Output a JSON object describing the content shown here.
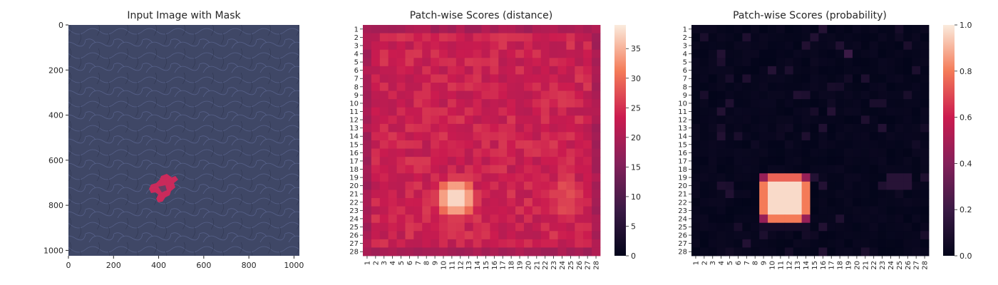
{
  "chart_data": [
    {
      "type": "image",
      "title": "Input Image with Mask",
      "xlim": [
        0,
        1024
      ],
      "ylim": [
        1024,
        0
      ],
      "x_ticks": [
        0,
        200,
        400,
        600,
        800,
        1000
      ],
      "y_ticks": [
        0,
        200,
        400,
        600,
        800,
        1000
      ],
      "image_description": "dark blue leather texture with a small red mask region",
      "mask_region": {
        "x_range": [
          360,
          480
        ],
        "y_range": [
          650,
          780
        ]
      },
      "colors": {
        "background": "#3f4766",
        "mask": "#d6285a"
      }
    },
    {
      "type": "heatmap",
      "title": "Patch-wise Scores (distance)",
      "rows": 28,
      "cols": 28,
      "x_ticks": [
        "1",
        "2",
        "3",
        "4",
        "5",
        "6",
        "7",
        "8",
        "9",
        "10",
        "11",
        "12",
        "13",
        "14",
        "15",
        "16",
        "17",
        "18",
        "19",
        "20",
        "21",
        "22",
        "23",
        "24",
        "25",
        "26",
        "27",
        "28"
      ],
      "y_ticks": [
        "1",
        "2",
        "3",
        "4",
        "5",
        "6",
        "7",
        "8",
        "9",
        "10",
        "11",
        "12",
        "13",
        "14",
        "15",
        "16",
        "17",
        "18",
        "19",
        "20",
        "21",
        "22",
        "23",
        "24",
        "25",
        "26",
        "27",
        "28"
      ],
      "colorbar": {
        "min": 0,
        "max": 39,
        "ticks": [
          0,
          5,
          10,
          15,
          20,
          25,
          30,
          35
        ]
      },
      "model": {
        "base": 23.5,
        "border": 19.5,
        "hotspot": {
          "center_row": 21.5,
          "center_col": 11.5,
          "peak": 38.5,
          "radius_rows": 2.5,
          "radius_cols": 2.5
        },
        "secondary": {
          "center_row": 21.5,
          "center_col": 24.5,
          "peak": 27.5,
          "radius_rows": 3,
          "radius_cols": 2
        }
      }
    },
    {
      "type": "heatmap",
      "title": "Patch-wise Scores (probability)",
      "rows": 28,
      "cols": 28,
      "x_ticks": [
        "1",
        "2",
        "3",
        "4",
        "5",
        "6",
        "7",
        "8",
        "9",
        "10",
        "11",
        "12",
        "13",
        "14",
        "15",
        "16",
        "17",
        "18",
        "19",
        "20",
        "21",
        "22",
        "23",
        "24",
        "25",
        "26",
        "27",
        "28"
      ],
      "y_ticks": [
        "1",
        "2",
        "3",
        "4",
        "5",
        "6",
        "7",
        "8",
        "9",
        "10",
        "11",
        "12",
        "13",
        "14",
        "15",
        "16",
        "17",
        "18",
        "19",
        "20",
        "21",
        "22",
        "23",
        "24",
        "25",
        "26",
        "27",
        "28"
      ],
      "colorbar": {
        "min": 0.0,
        "max": 1.0,
        "ticks": [
          "0.0",
          "0.2",
          "0.4",
          "0.6",
          "0.8",
          "1.0"
        ]
      },
      "model": {
        "hotspot": {
          "row_range": [
            19,
            24
          ],
          "col_range": [
            9,
            14
          ],
          "peak": 1.0
        }
      }
    }
  ]
}
